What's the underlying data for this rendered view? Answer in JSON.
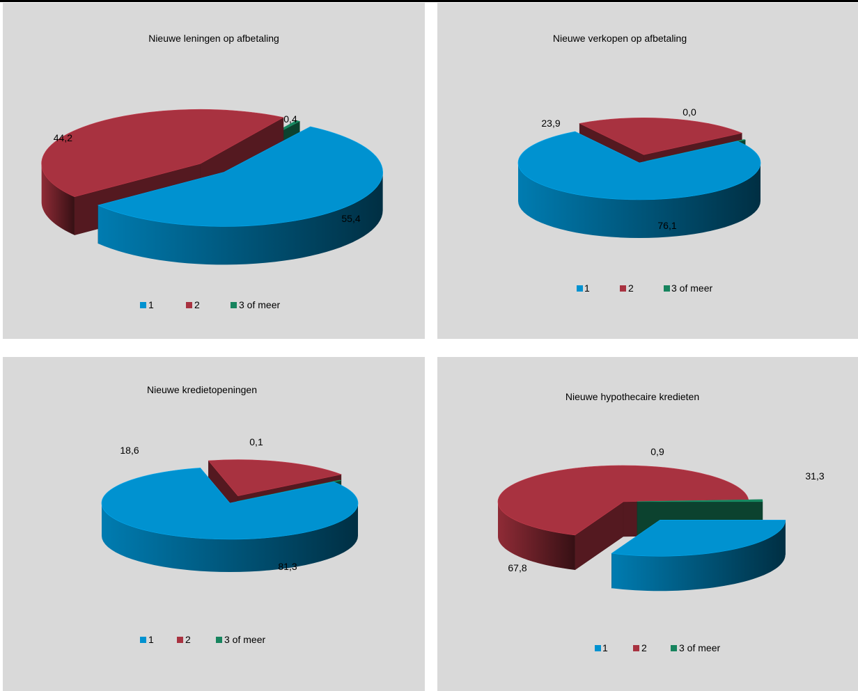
{
  "colors": {
    "blue": "#0092d0",
    "red": "#a83240",
    "green": "#17845e"
  },
  "legend": [
    "1",
    "2",
    "3 of meer"
  ],
  "chart_data": [
    {
      "type": "pie",
      "title": "Nieuwe leningen op afbetaling",
      "categories": [
        "1",
        "2",
        "3 of meer"
      ],
      "values": [
        55.4,
        44.2,
        0.4
      ],
      "labels": [
        "55,4",
        "44,2",
        "0,4"
      ],
      "legend_position": "bottom"
    },
    {
      "type": "pie",
      "title": "Nieuwe verkopen op afbetaling",
      "categories": [
        "1",
        "2",
        "3 of meer"
      ],
      "values": [
        76.1,
        23.9,
        0.0
      ],
      "labels": [
        "76,1",
        "23,9",
        "0,0"
      ],
      "legend_position": "bottom"
    },
    {
      "type": "pie",
      "title": "Nieuwe kredietopeningen",
      "categories": [
        "1",
        "2",
        "3 of meer"
      ],
      "values": [
        81.3,
        18.6,
        0.1
      ],
      "labels": [
        "81,3",
        "18,6",
        "0,1"
      ],
      "legend_position": "bottom"
    },
    {
      "type": "pie",
      "title": "Nieuwe hypothecaire kredieten",
      "categories": [
        "1",
        "2",
        "3 of meer"
      ],
      "values": [
        31.3,
        67.8,
        0.9
      ],
      "labels": [
        "31,3",
        "67,8",
        "0,9"
      ],
      "legend_position": "bottom"
    }
  ]
}
